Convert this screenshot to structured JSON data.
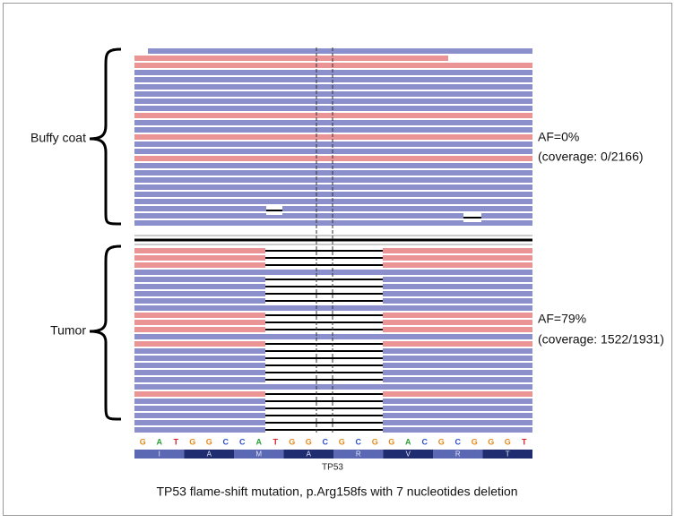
{
  "labels": {
    "buffy": "Buffy coat",
    "tumor": "Tumor"
  },
  "annotations": [
    {
      "af": "AF=0%",
      "coverage": "(coverage: 0/2166)"
    },
    {
      "af": "AF=79%",
      "coverage": "(coverage: 1522/1931)"
    }
  ],
  "sequence": [
    "G",
    "A",
    "T",
    "G",
    "G",
    "C",
    "C",
    "A",
    "T",
    "G",
    "G",
    "C",
    "G",
    "C",
    "G",
    "G",
    "A",
    "C",
    "G",
    "C",
    "G",
    "G",
    "G",
    "T"
  ],
  "amino_acids": [
    "I",
    "A",
    "M",
    "A",
    "R",
    "V",
    "R",
    "T"
  ],
  "gene": "TP53",
  "caption": "TP53 flame-shift mutation, p.Arg158fs with 7 nucleotides deletion"
}
